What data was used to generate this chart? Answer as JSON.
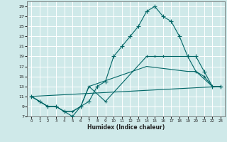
{
  "title": "",
  "xlabel": "Humidex (Indice chaleur)",
  "background_color": "#cfe9e9",
  "grid_color": "#ffffff",
  "line_color": "#006666",
  "xlim": [
    -0.5,
    23.5
  ],
  "ylim": [
    7,
    30
  ],
  "yticks": [
    7,
    9,
    11,
    13,
    15,
    17,
    19,
    21,
    23,
    25,
    27,
    29
  ],
  "xticks": [
    0,
    1,
    2,
    3,
    4,
    5,
    6,
    7,
    8,
    9,
    10,
    11,
    12,
    13,
    14,
    15,
    16,
    17,
    18,
    19,
    20,
    21,
    22,
    23
  ],
  "line1": {
    "x": [
      0,
      1,
      2,
      3,
      4,
      5,
      6,
      7,
      8,
      9,
      10,
      11,
      12,
      13,
      14,
      15,
      16,
      17,
      18,
      19,
      20,
      21,
      22,
      23
    ],
    "y": [
      11,
      10,
      9,
      9,
      8,
      7,
      9,
      10,
      13,
      14,
      19,
      21,
      23,
      25,
      28,
      29,
      27,
      26,
      23,
      19,
      19,
      16,
      13,
      13
    ]
  },
  "line2": {
    "x": [
      0,
      2,
      3,
      4,
      5,
      6,
      7,
      9,
      14,
      15,
      16,
      19,
      20,
      21,
      22,
      23
    ],
    "y": [
      11,
      9,
      9,
      8,
      8,
      9,
      13,
      10,
      19,
      19,
      19,
      19,
      16,
      15,
      13,
      13
    ]
  },
  "line3": {
    "x": [
      0,
      2,
      3,
      4,
      5,
      6,
      7,
      14,
      19,
      20,
      22,
      23
    ],
    "y": [
      11,
      9,
      9,
      8,
      8,
      9,
      13,
      17,
      16,
      16,
      13,
      13
    ]
  },
  "line4": {
    "x": [
      0,
      23
    ],
    "y": [
      11,
      13
    ]
  }
}
